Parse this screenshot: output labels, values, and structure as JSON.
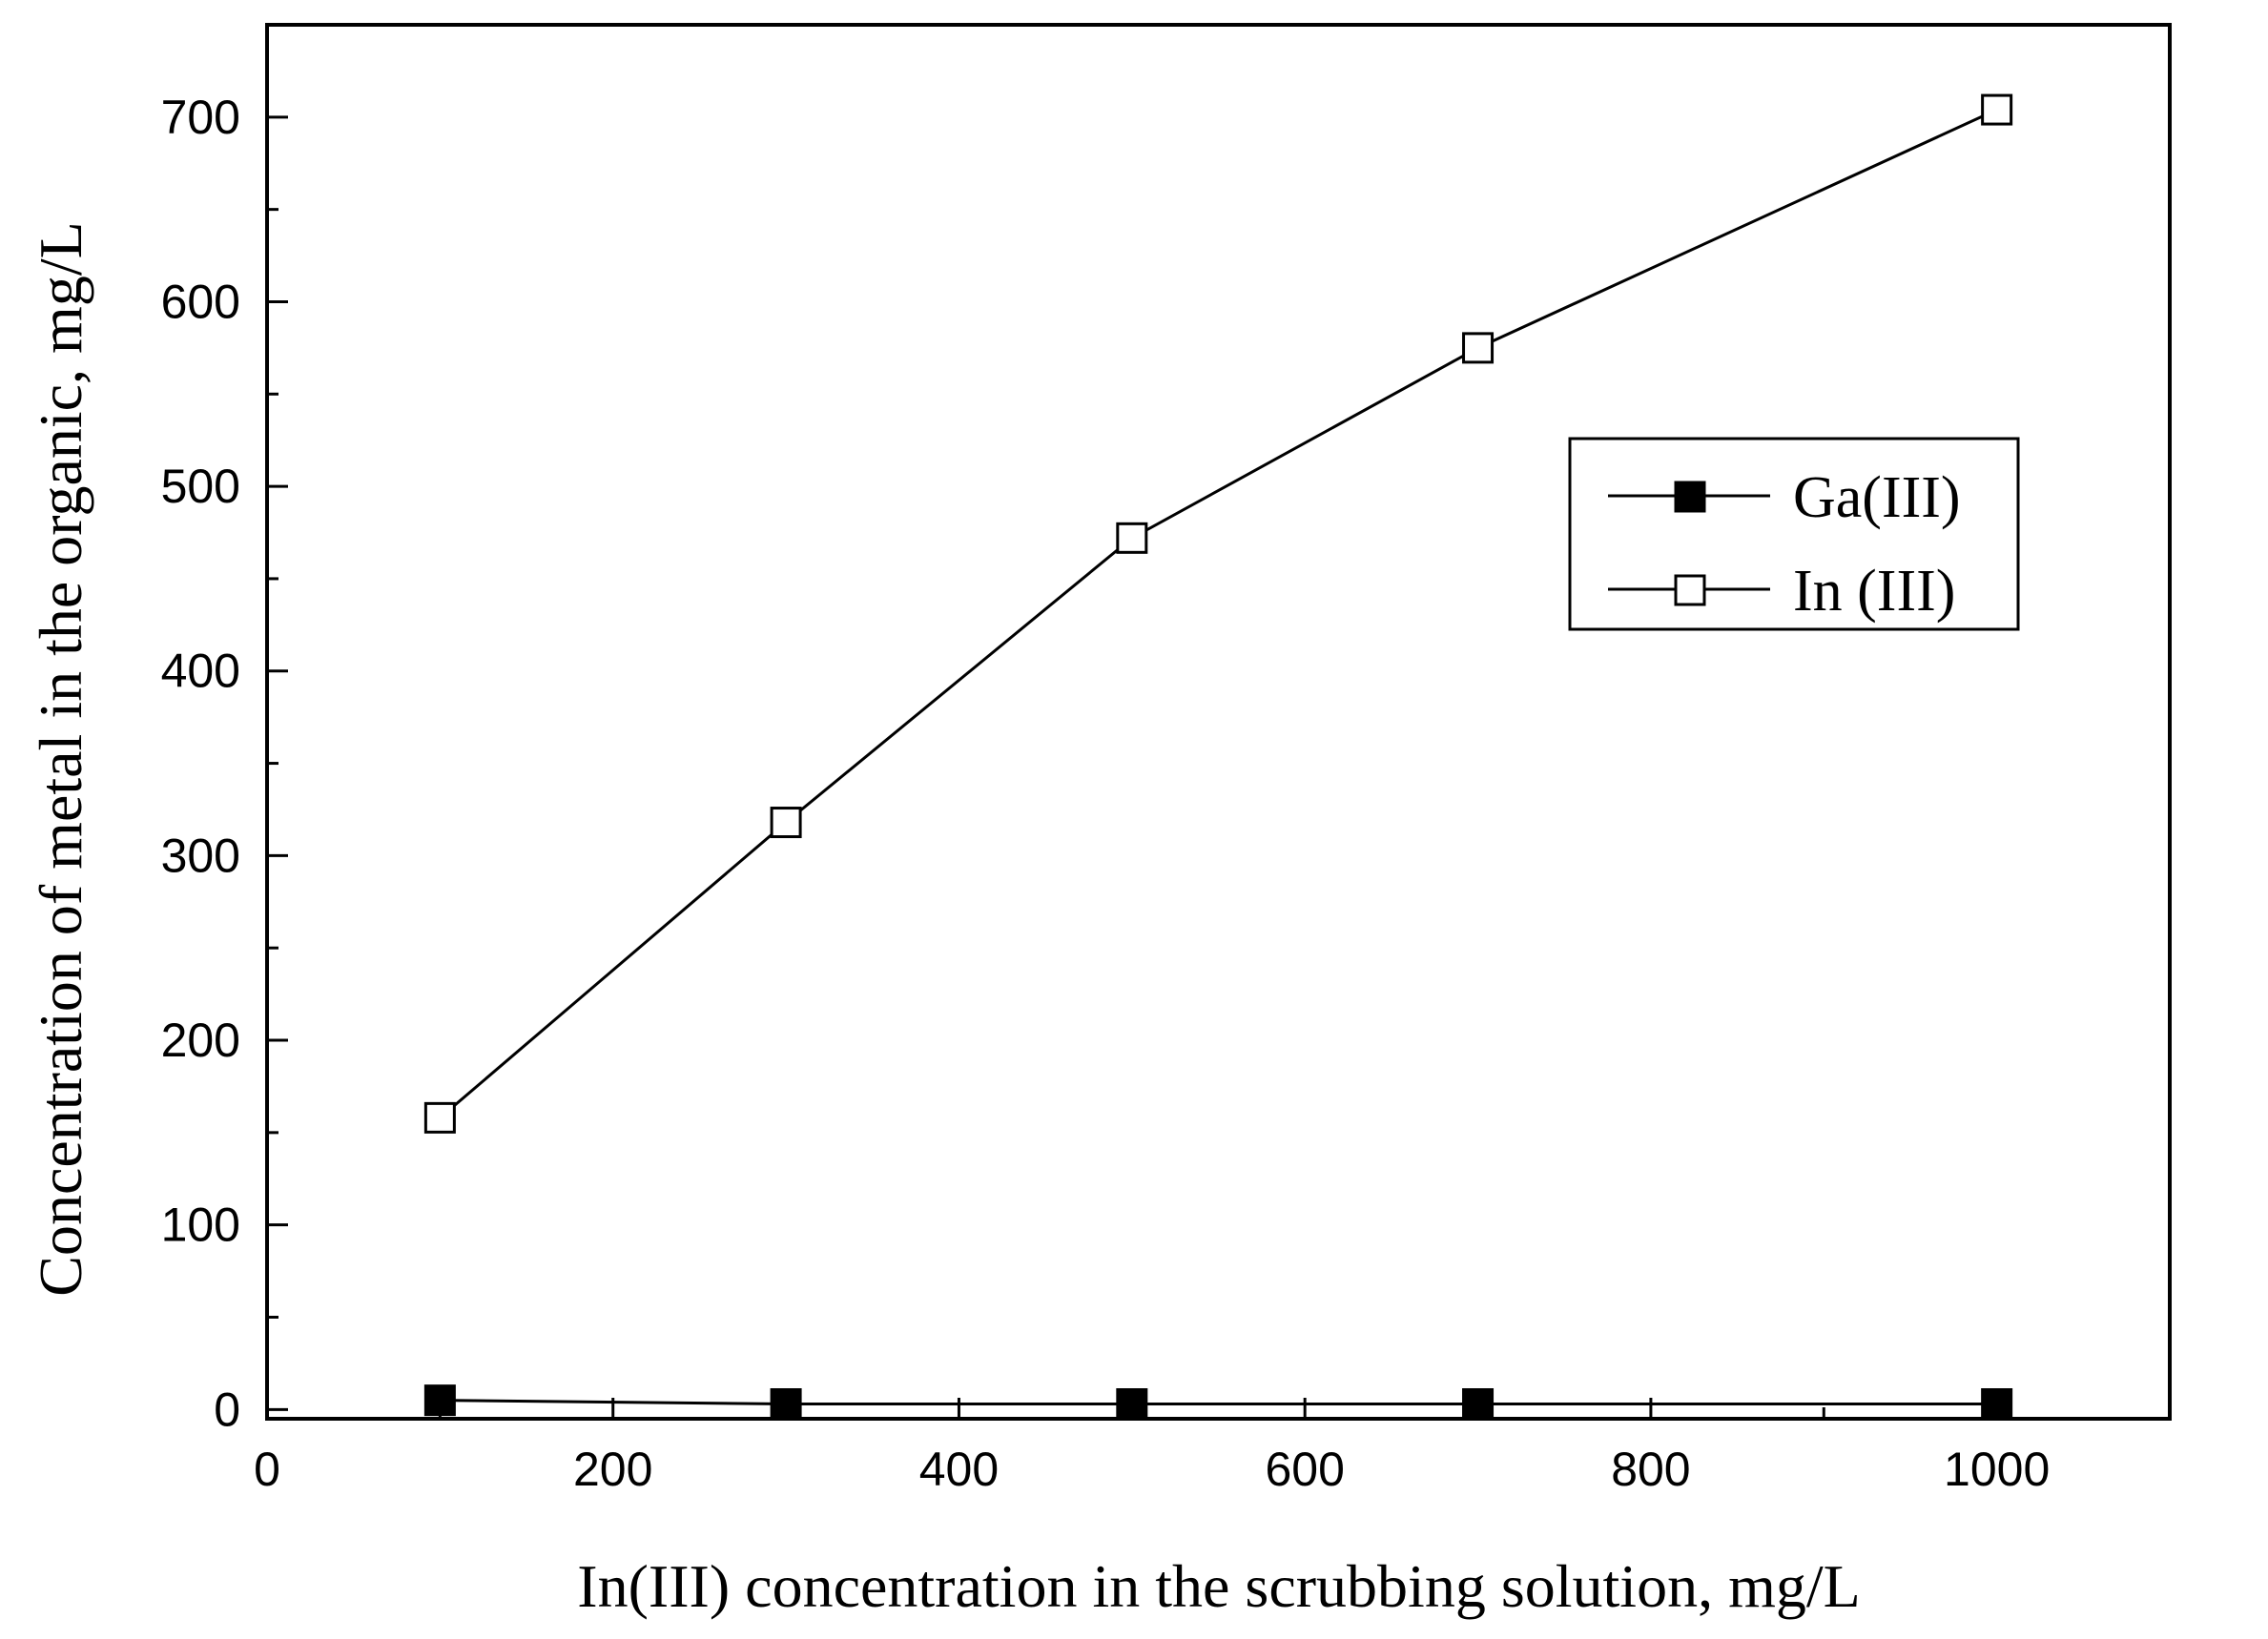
{
  "chart_data": {
    "type": "line",
    "xlabel": "In(III) concentration in the scrubbing solution, mg/L",
    "ylabel": "Concentration of metal in the organic, mg/L",
    "xlim": [
      0,
      1100
    ],
    "ylim": [
      -5,
      750
    ],
    "xticks": [
      0,
      200,
      400,
      600,
      800,
      1000
    ],
    "yticks": [
      0,
      100,
      200,
      300,
      400,
      500,
      600,
      700
    ],
    "x_minor_step": 100,
    "y_minor_step": 50,
    "grid": false,
    "legend_position": "upper-right",
    "x": [
      100,
      300,
      500,
      700,
      1000
    ],
    "series": [
      {
        "name": "Ga(III)",
        "marker": "filled-square",
        "color": "#000000",
        "values": [
          5,
          3,
          3,
          3,
          3
        ]
      },
      {
        "name": "In (III)",
        "marker": "open-square",
        "color": "#000000",
        "values": [
          158,
          318,
          472,
          575,
          704
        ]
      }
    ]
  }
}
